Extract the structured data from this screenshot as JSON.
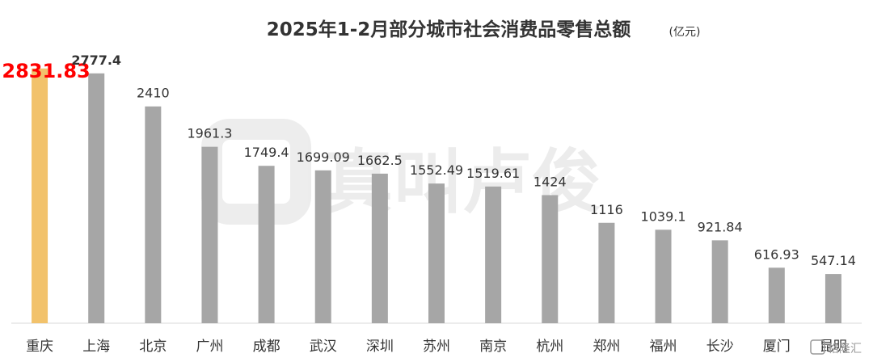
{
  "chart_data": {
    "type": "bar",
    "title": "2025年1-2月部分城市社会消费品零售总额",
    "unit": "(亿元)",
    "categories": [
      "重庆",
      "上海",
      "北京",
      "广州",
      "成都",
      "武汉",
      "深圳",
      "苏州",
      "南京",
      "杭州",
      "郑州",
      "福州",
      "长沙",
      "厦门",
      "昆明"
    ],
    "values": [
      2831.83,
      2777.4,
      2410,
      1961.3,
      1749.4,
      1699.09,
      1662.5,
      1552.49,
      1519.61,
      1424,
      1116,
      1039.1,
      921.84,
      616.93,
      547.14
    ],
    "value_labels": [
      "2831.83",
      "2777.4",
      "2410",
      "1961.3",
      "1749.4",
      "1699.09",
      "1662.5",
      "1552.49",
      "1519.61",
      "1424",
      "1116",
      "1039.1",
      "921.84",
      "616.93",
      "547.14"
    ],
    "ylim": [
      0,
      3000
    ],
    "grid": false,
    "xlabel": "",
    "ylabel": "",
    "highlight_index": 0,
    "colors": {
      "highlight_bar": "#F2C26B",
      "bar": "#A6A6A6",
      "highlight_label": "#FF0000",
      "label": "#333333",
      "axis": "#D9D9D9",
      "title": "#333333"
    }
  },
  "watermark": {
    "text": "真叫卢俊",
    "corner_badge": "格隆汇"
  }
}
